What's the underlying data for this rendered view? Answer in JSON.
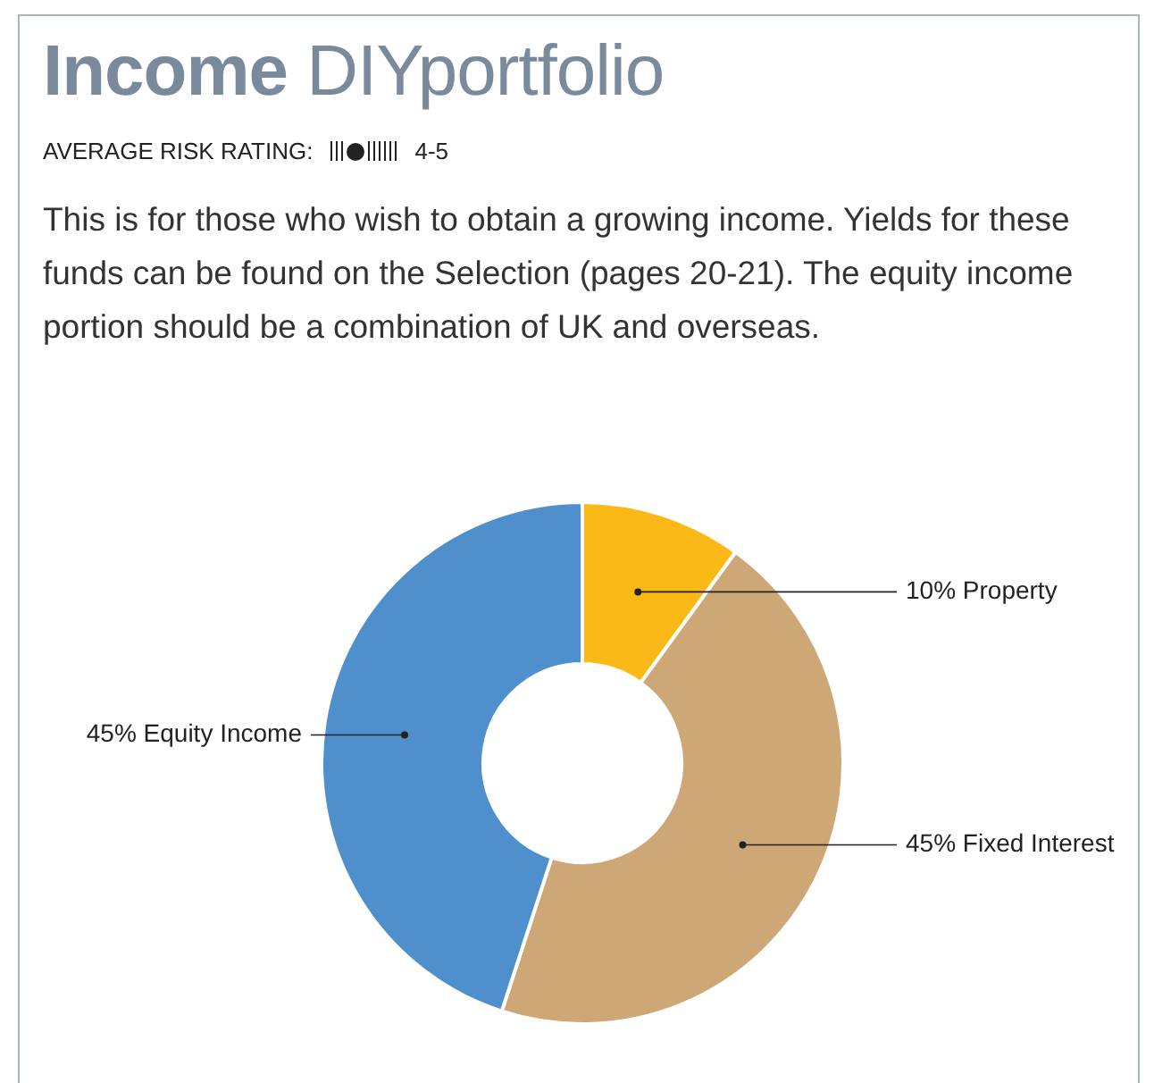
{
  "chart_data": {
    "type": "donut",
    "title": "Income DIYportfolio",
    "subtitle": "AVERAGE RISK RATING: 4-5",
    "annotations": [
      "This is for those who wish to obtain a growing income. Yields for these funds can be found on the Selection (pages 20-21). The equity income portion should be a combination of UK and overseas."
    ],
    "categories": [
      "Property",
      "Fixed Interest",
      "Equity Income"
    ],
    "values": [
      10,
      45,
      45
    ],
    "value_labels": [
      "10%",
      "45%",
      "45%"
    ],
    "colors": [
      "#fbb917",
      "#cda776",
      "#4f8fcc"
    ],
    "legend": false
  }
}
